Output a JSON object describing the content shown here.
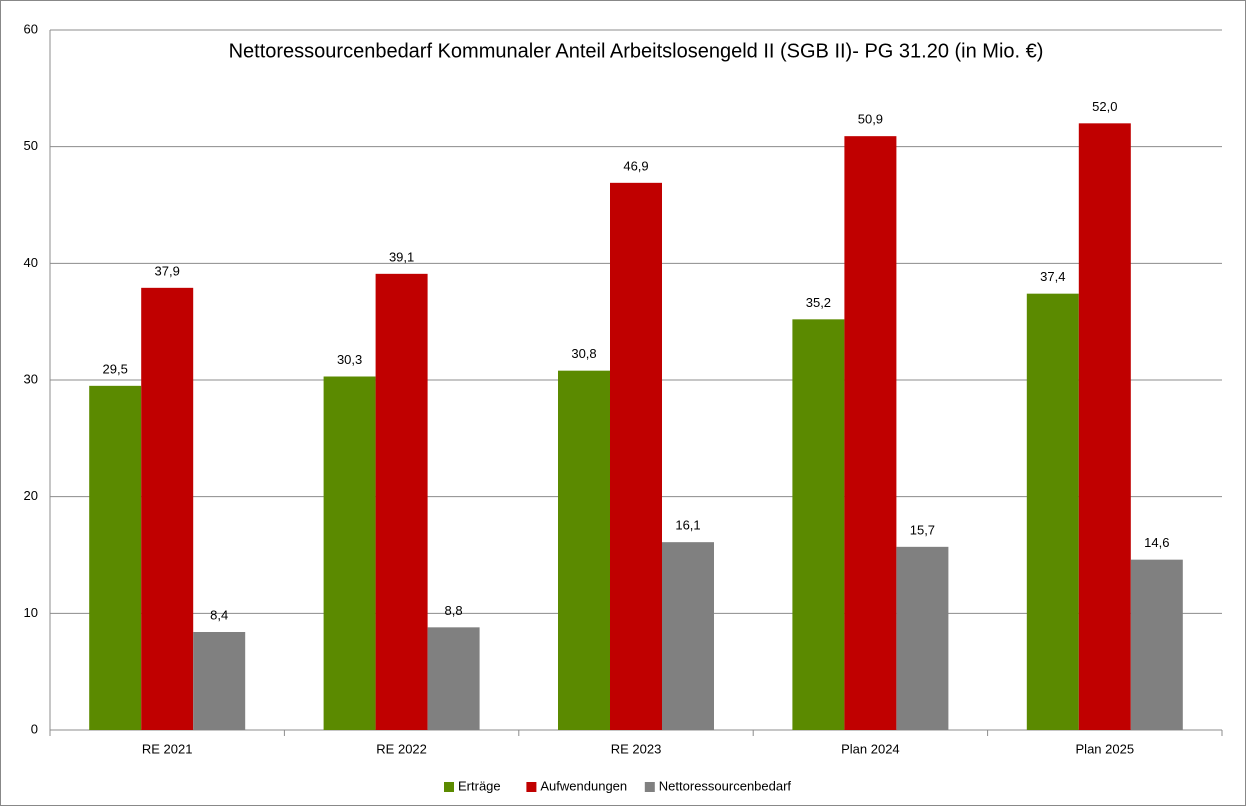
{
  "chart_data": {
    "type": "bar",
    "title": "Nettoressourcenbedarf Kommunaler Anteil Arbeitslosengeld II (SGB II)- PG 31.20 (in Mio. €)",
    "categories": [
      "RE 2021",
      "RE 2022",
      "RE 2023",
      "Plan 2024",
      "Plan 2025"
    ],
    "series": [
      {
        "name": "Erträge",
        "color": "#5b8a00",
        "values": [
          29.5,
          30.3,
          30.8,
          35.2,
          37.4
        ],
        "value_labels": [
          "29,5",
          "30,3",
          "30,8",
          "35,2",
          "37,4"
        ]
      },
      {
        "name": "Aufwendungen",
        "color": "#c00000",
        "values": [
          37.9,
          39.1,
          46.9,
          50.9,
          52.0
        ],
        "value_labels": [
          "37,9",
          "39,1",
          "46,9",
          "50,9",
          "52,0"
        ]
      },
      {
        "name": "Nettoressourcenbedarf",
        "color": "#808080",
        "values": [
          8.4,
          8.8,
          16.1,
          15.7,
          14.6
        ],
        "value_labels": [
          "8,4",
          "8,8",
          "16,1",
          "15,7",
          "14,6"
        ]
      }
    ],
    "ylim": [
      0,
      60
    ],
    "yticks": [
      0,
      10,
      20,
      30,
      40,
      50,
      60
    ],
    "grid": true,
    "legend": "bottom"
  }
}
